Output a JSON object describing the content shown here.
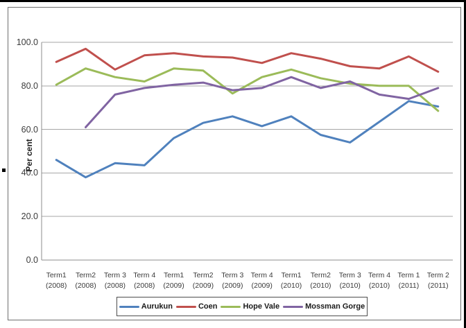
{
  "chart_data": {
    "type": "line",
    "title": "",
    "xlabel": "",
    "ylabel": "Per cent",
    "ylim": [
      0,
      100
    ],
    "ytick_interval": 20,
    "ytick_labels": [
      "100.0",
      "80.0",
      "60.0",
      "40.0",
      "20.0",
      "0.0"
    ],
    "grid": true,
    "legend_position": "bottom",
    "categories": [
      "Term1 (2008)",
      "Term2 (2008)",
      "Term 3 (2008)",
      "Term 4 (2008)",
      "Term1 (2009)",
      "Term2 (2009)",
      "Term 3 (2009)",
      "Term 4 (2009)",
      "Term1 (2010)",
      "Term2 (2010)",
      "Term 3 (2010)",
      "Term 4 (2010)",
      "Term 1 (2011)",
      "Term 2 (2011)"
    ],
    "category_labels": [
      {
        "term": "Term1",
        "year": "(2008)"
      },
      {
        "term": "Term2",
        "year": "(2008)"
      },
      {
        "term": "Term 3",
        "year": "(2008)"
      },
      {
        "term": "Term 4",
        "year": "(2008)"
      },
      {
        "term": "Term1",
        "year": "(2009)"
      },
      {
        "term": "Term2",
        "year": "(2009)"
      },
      {
        "term": "Term 3",
        "year": "(2009)"
      },
      {
        "term": "Term 4",
        "year": "(2009)"
      },
      {
        "term": "Term1",
        "year": "(2010)"
      },
      {
        "term": "Term2",
        "year": "(2010)"
      },
      {
        "term": "Term 3",
        "year": "(2010)"
      },
      {
        "term": "Term 4",
        "year": "(2010)"
      },
      {
        "term": "Term 1",
        "year": "(2011)"
      },
      {
        "term": "Term 2",
        "year": "(2011)"
      }
    ],
    "series": [
      {
        "name": "Aurukun",
        "color": "#4F81BD",
        "values": [
          46,
          38,
          44.5,
          43.5,
          56,
          63,
          66,
          61.5,
          66,
          57.5,
          54,
          63.5,
          73,
          70.5
        ]
      },
      {
        "name": "Coen",
        "color": "#C0504D",
        "values": [
          91,
          97,
          87.5,
          94,
          95,
          93.5,
          93,
          90.5,
          95,
          92.5,
          89,
          88,
          93.5,
          86.5
        ]
      },
      {
        "name": "Hope Vale",
        "color": "#9BBB59",
        "values": [
          80.5,
          88,
          84,
          82,
          88,
          87,
          76.5,
          84,
          87.5,
          83.5,
          81,
          80,
          80,
          68.5
        ]
      },
      {
        "name": "Mossman Gorge",
        "color": "#8064A2",
        "values": [
          null,
          61,
          76,
          79,
          80.5,
          81.5,
          78,
          79,
          84,
          79,
          82,
          76,
          74,
          79
        ]
      }
    ]
  }
}
